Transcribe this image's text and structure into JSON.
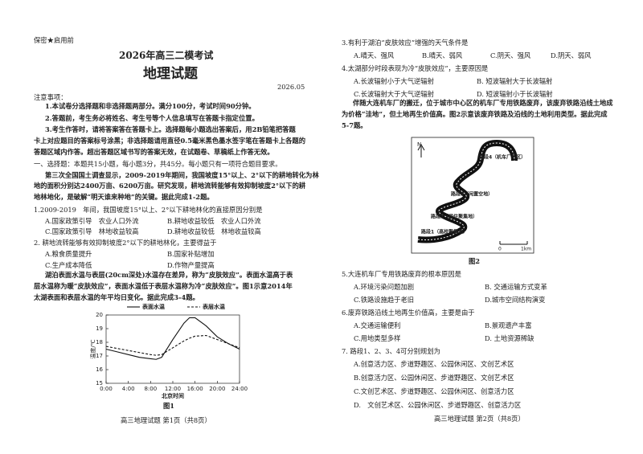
{
  "header": {
    "confidential": "保密★启用前",
    "exam": "2026年高三二模考试",
    "subject": "地理试题",
    "date": "2026.05"
  },
  "notice": {
    "title": "注意事项：",
    "lines": [
      "1.本试卷分选择题和非选择题两部分。满分100分，考试时间90分钟。",
      "2.答题前，考生务必将姓名、考生号等个人信息填写在答题卡指定位置。",
      "3.考生作答时，请将答案答在答题卡上。选择题每小题选出答案后，用2B铅笔把答题",
      "卡上对应题目的答案标号涂黑；非选择题请用直径0.5毫米黑色墨水签字笔在答题卡上各题的",
      "答题区域内作答。超出答题区域书写的答案无效，在试题卷、草稿纸上作答无效。"
    ]
  },
  "section": "一、选择题：本题共15小题，每小题3分，共45分。每小题只有一项符合题目要求。",
  "passages": [
    [
      "第三次全国国土调查显示，2009-2019年期间，我国坡度15°以上、2°以下的耕地转化为林",
      "地的面积分别达2400万亩、6200万亩。研究发现，耕地流转能够有效抑制坡度2°以下的耕",
      "地林地化，是破解“明天谁来种地”的关键。据此完成1-2题。"
    ],
    [
      "湖泊表面水温与表层(20cm深处)水温存在差异，称为“皮肤效应”。表面水温高于表",
      "层水温称为暖“皮肤效应”，表面水温低于表层水温称为冷“皮肤效应”。图1示意2014年",
      "太湖表面和表层水温的年平均日变化。据此完成3-4题。"
    ],
    [
      "伴随大连机车厂的搬迁，位于城市中心区的机车厂专用铁路废弃，该废弃铁路沿线土地成",
      "为价格“洼地”，但土地再生价值高。图2示意该废弃铁路及沿线的土地利用类型。据此完成",
      "5-7题。"
    ]
  ],
  "questions": [
    {
      "stem": "1.2009-2019　年间，我国坡度15°以上、2°以下耕地林化的直接原因分别是",
      "options": [
        "A.国家政策引导　农业人口外流",
        "B.耕地收益较低　农业人口外流",
        "C.国家政策引导　林地收益较高",
        "D.耕地收益较低　林地收益较高"
      ]
    },
    {
      "stem": "2. 耕地流转能够有效抑制坡度2°以下的耕地林化，主要得益于",
      "options": [
        "A.粮食质量提升",
        "B.国家补贴增加",
        "C.生产成本降低",
        "D.作物产量提高"
      ]
    },
    {
      "stem": "3.有利于湖泊“皮肤效应”增强的天气条件是",
      "options": [
        "A.晴天、强风",
        "B.晴天、弱风",
        "C.阴天、强风",
        "D.阴天、弱风"
      ]
    },
    {
      "stem": "4.太湖部分时段表现为冷“皮肤效应”，主要原因是",
      "options": [
        "A.长波辐射小于大气逆辐射",
        "B. 短波辐射大于长波辐射",
        "C.长波辐射大于大气逆辐射",
        "D. 短波辐射小于长波辐射"
      ]
    },
    {
      "stem": "5.大连机车厂专用铁路废弃的根本原因是",
      "options": [
        "A.环境污染问题加剧",
        "B. 交通运输方式变革",
        "C.铁路设施趋于老旧",
        "D.城市空间结构演变"
      ]
    },
    {
      "stem": "6.废弃铁路沿线土地再生价值高，主要是由于",
      "options": [
        "A.交通运输便利",
        "B.景观遗产丰富",
        "C.用地类型多样",
        "D. 土地资源稀缺"
      ]
    },
    {
      "stem": "7. 路段1、2、3、4可分别规划为",
      "options": [
        "A.创意活力区、步道野趣区、公园休闲区、文创艺术区",
        "B.创意活力区、公园休闲区、步道野趣区、文创艺术区",
        "C.文创艺术区、步道野趣区、公园休闲区、创意活力区",
        "D.　文创艺术区、公园休闲区、步道野趣区、创意活力区"
      ]
    }
  ],
  "figure_captions": [
    "图1",
    "图2"
  ],
  "map": {
    "north": "N",
    "labels": [
      "路段4（机车厂厂区）",
      "路段3（闲置空地）",
      "路段2（居住聚集地）",
      "路段1（高校聚集地）"
    ],
    "scale": [
      "0",
      "1km"
    ]
  },
  "footers": [
    "高三地理试题 第1页（共8页）",
    "高三地理试题 第2页（共8页）"
  ],
  "chart_data": {
    "type": "line",
    "x_label": "北京时间",
    "y_label": "温度/℃",
    "x": [
      0,
      2,
      4,
      6,
      8,
      9,
      10,
      12,
      14,
      15,
      16,
      18,
      20,
      22,
      24
    ],
    "series": [
      {
        "name": "表面水温",
        "color": "#111111",
        "line_style": "solid",
        "values": [
          17.5,
          17.3,
          17.1,
          16.9,
          16.8,
          16.75,
          16.9,
          18.2,
          19.4,
          19.8,
          19.8,
          19.2,
          18.4,
          17.9,
          17.5
        ]
      },
      {
        "name": "表层水温",
        "color": "#111111",
        "line_style": "dashed",
        "values": [
          17.7,
          17.55,
          17.4,
          17.25,
          17.1,
          17.05,
          17.1,
          17.6,
          18.1,
          18.3,
          18.45,
          18.5,
          18.2,
          17.9,
          17.6
        ]
      }
    ],
    "xlim": [
      0,
      24
    ],
    "xticks": [
      {
        "value": 0,
        "label": "0:00"
      },
      {
        "value": 4,
        "label": "4:00"
      },
      {
        "value": 8,
        "label": "8:00"
      },
      {
        "value": 12,
        "label": "12:00"
      },
      {
        "value": 16,
        "label": "16:00"
      },
      {
        "value": 20,
        "label": "20:00"
      },
      {
        "value": 24,
        "label": "24:00"
      }
    ],
    "ylim": [
      15,
      20
    ],
    "yticks": [
      15,
      16,
      17,
      18,
      19,
      20
    ]
  }
}
